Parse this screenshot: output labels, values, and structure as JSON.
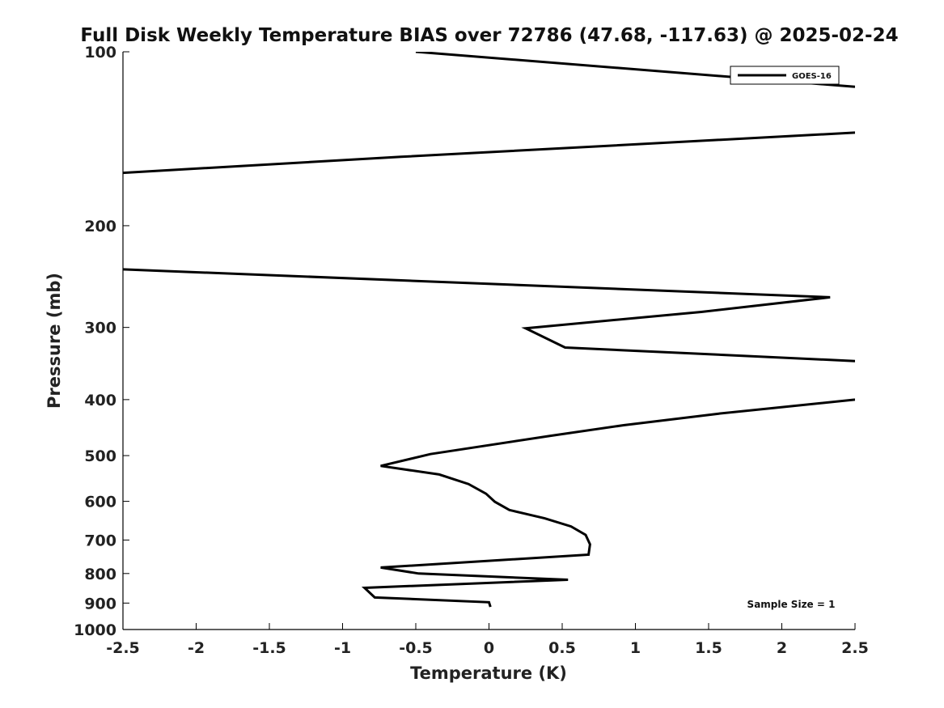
{
  "chart_data": {
    "type": "line",
    "title": "Full Disk Weekly Temperature BIAS over 72786 (47.68, -117.63) @ 2025-02-24",
    "xlabel": "Temperature (K)",
    "ylabel": "Pressure (mb)",
    "xlim": [
      -2.5,
      2.5
    ],
    "ylim": [
      1000,
      100
    ],
    "yscale": "log",
    "grid": false,
    "legend_position": "top-right",
    "xticks": [
      -2.5,
      -2,
      -1.5,
      -1,
      -0.5,
      0,
      0.5,
      1,
      1.5,
      2,
      2.5
    ],
    "xtick_labels": [
      "-2.5",
      "-2",
      "-1.5",
      "-1",
      "-0.5",
      "0",
      "0.5",
      "1",
      "1.5",
      "2",
      "2.5"
    ],
    "yticks": [
      100,
      200,
      300,
      400,
      500,
      600,
      700,
      800,
      900,
      1000
    ],
    "ytick_labels": [
      "100",
      "200",
      "300",
      "400",
      "500",
      "600",
      "700",
      "800",
      "900",
      "1000"
    ],
    "annotation": "Sample Size = 1",
    "series": [
      {
        "name": "GOES-16",
        "color": "#000000",
        "segments": [
          {
            "x": [
              -0.5,
              2.5
            ],
            "p": [
              100,
              115
            ]
          },
          {
            "x": [
              2.5,
              -0.6,
              -2.5
            ],
            "p": [
              138,
              152,
              162
            ]
          },
          {
            "x": [
              -2.5,
              2.33,
              1.45,
              0.25,
              0.52,
              2.5
            ],
            "p": [
              238,
              266,
              282,
              301,
              325,
              343
            ]
          },
          {
            "x": [
              2.5,
              1.57,
              0.92,
              0.42,
              -0.4,
              -0.74,
              -0.34,
              -0.14,
              -0.02,
              0.04,
              0.14,
              0.38,
              0.56,
              0.66,
              0.69,
              0.68,
              -0.74,
              -0.48,
              0.54,
              -0.85,
              -0.78,
              0.0,
              0.01
            ],
            "p": [
              400,
              423,
              443,
              462,
              497,
              521,
              539,
              560,
              582,
              601,
              621,
              642,
              663,
              686,
              712,
              742,
              781,
              800,
              820,
              847,
              880,
              897,
              914
            ]
          }
        ]
      }
    ]
  }
}
